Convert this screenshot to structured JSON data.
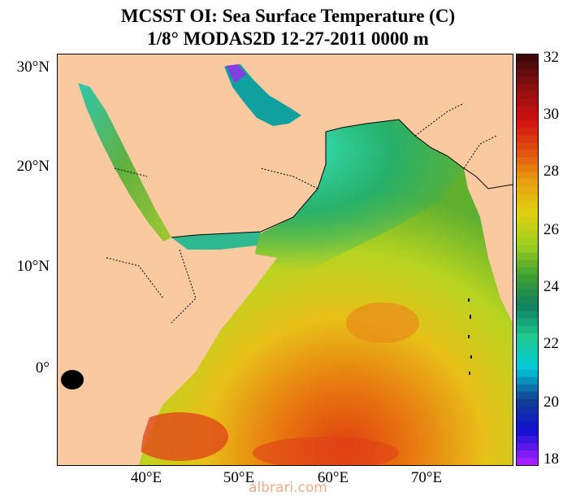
{
  "title_line1": "MCSST OI:  Sea Surface Temperature (C)",
  "title_line2": "1/8° MODAS2D 12-27-2011 0000 m",
  "lat_labels": [
    "30°N",
    "20°N",
    "10°N",
    "0°"
  ],
  "lon_labels": [
    "40°E",
    "50°E",
    "60°E",
    "70°E"
  ],
  "colorbar": {
    "ticks": [
      "32",
      "30",
      "28",
      "26",
      "24",
      "22",
      "20",
      "18"
    ],
    "min": 18,
    "max": 32,
    "colors": {
      "land": "#f9c9a0",
      "scale": [
        "#a020ff",
        "#1010d0",
        "#104090",
        "#00c8d8",
        "#20c890",
        "#108060",
        "#40a030",
        "#a0d020",
        "#e0d010",
        "#e8a010",
        "#e05010",
        "#d01010",
        "#901010",
        "#400808"
      ]
    }
  },
  "watermark": "albrari.com"
}
